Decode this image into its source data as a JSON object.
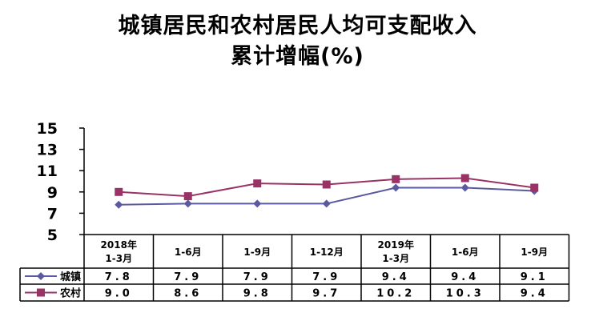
{
  "title_line1": "城镇居民和农村居民人均可支配收入",
  "title_line2": "累计增幅(%)",
  "chart_data": {
    "type": "line",
    "title": "城镇居民和农村居民人均可支配收入累计增幅(%)",
    "categories": [
      [
        "2018年",
        "1-3月"
      ],
      [
        "1-6月"
      ],
      [
        "1-9月"
      ],
      [
        "1-12月"
      ],
      [
        "2019年",
        "1-3月"
      ],
      [
        "1-6月"
      ],
      [
        "1-9月"
      ]
    ],
    "ylim": [
      5,
      15
    ],
    "yticks": [
      15,
      13,
      11,
      9,
      7,
      5
    ],
    "grid": false,
    "legend": "data-table",
    "series": [
      {
        "name": "城镇",
        "values": [
          7.8,
          7.9,
          7.9,
          7.9,
          9.4,
          9.4,
          9.1
        ],
        "labels": [
          "7.8",
          "7.9",
          "7.9",
          "7.9",
          "9.4",
          "9.4",
          "9.1"
        ],
        "color": "#5a5aa0",
        "marker": "diamond"
      },
      {
        "name": "农村",
        "values": [
          9.0,
          8.6,
          9.8,
          9.7,
          10.2,
          10.3,
          9.4
        ],
        "labels": [
          "9.0",
          "8.6",
          "9.8",
          "9.7",
          "10.2",
          "10.3",
          "9.4"
        ],
        "color": "#993366",
        "marker": "square"
      }
    ]
  }
}
